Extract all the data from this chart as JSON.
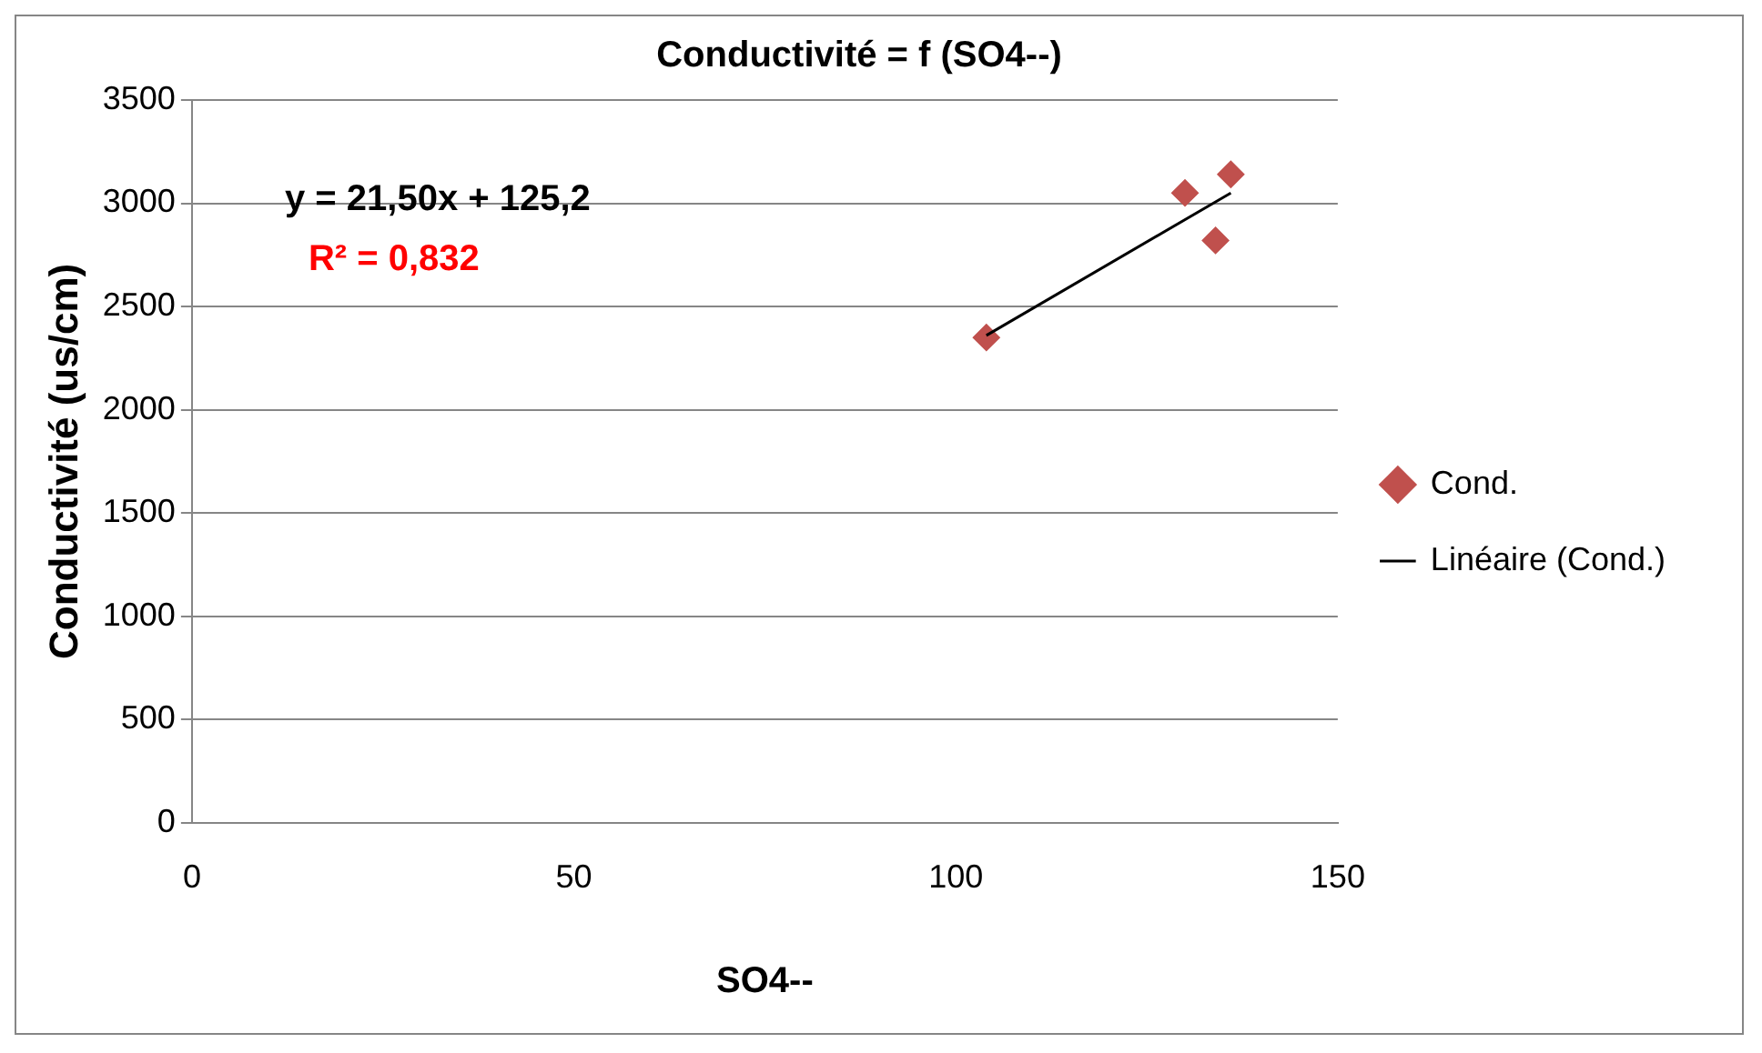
{
  "chart_data": {
    "type": "scatter",
    "title": "Conductivité = f (SO4--)",
    "xlabel": "SO4--",
    "ylabel": "Conductivité (us/cm)",
    "xlim": [
      0,
      150
    ],
    "xticks": [
      0,
      50,
      100,
      150
    ],
    "ylim": [
      0,
      3500
    ],
    "yticks": [
      0,
      500,
      1000,
      1500,
      2000,
      2500,
      3000,
      3500
    ],
    "grid": "y",
    "legend": "right",
    "marker": "diamond",
    "annotations": [
      "y = 21,50x + 125,2",
      "R² = 0,832"
    ],
    "series": [
      {
        "name": "Cond.",
        "color": "#c0504d",
        "x": [
          104,
          130,
          134,
          136
        ],
        "values": [
          2350,
          3050,
          2820,
          3140
        ]
      },
      {
        "name": "Linéaire (Cond.)",
        "type": "line",
        "color": "#000000",
        "marker": "none",
        "line_style": "solid",
        "x": [
          104,
          136
        ],
        "values": [
          2360,
          3050
        ]
      }
    ]
  }
}
